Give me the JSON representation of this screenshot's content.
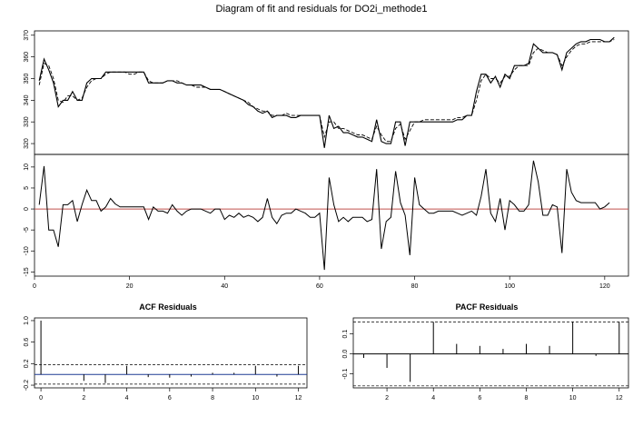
{
  "title": "Diagram of fit and residuals for DO2i_methode1",
  "colors": {
    "fitted": "#000000",
    "actual": "#000000",
    "zero_line": "#c0504d",
    "acf_line": "#1f3a93",
    "confidence": "#000000",
    "axis": "#000000"
  },
  "chart_data": [
    {
      "type": "line",
      "name_key": "fit",
      "title": "",
      "xlabel": "",
      "ylabel": "",
      "xlim": [
        0,
        125
      ],
      "ylim": [
        315,
        372
      ],
      "yticks": [
        320,
        330,
        340,
        350,
        360,
        370
      ],
      "series": [
        {
          "style": "solid",
          "values": [
            349,
            359,
            354,
            348,
            337,
            340,
            340,
            344,
            340,
            340,
            348,
            350,
            350,
            350,
            353,
            353,
            353,
            353,
            353,
            353,
            353,
            353,
            353,
            348,
            348,
            348,
            348,
            349,
            349,
            348,
            348,
            347,
            347,
            347,
            347,
            346,
            345,
            345,
            345,
            344,
            343,
            342,
            341,
            340,
            338,
            337,
            335,
            334,
            335,
            332,
            333,
            333,
            333,
            332,
            332,
            333,
            333,
            333,
            333,
            333,
            318,
            333,
            327,
            328,
            325,
            325,
            324,
            323,
            323,
            322,
            321,
            331,
            321,
            320,
            320,
            330,
            330,
            319,
            330,
            330,
            330,
            330,
            330,
            330,
            330,
            330,
            330,
            330,
            331,
            331,
            333,
            333,
            344,
            352,
            352,
            348,
            351,
            346,
            352,
            350,
            356,
            356,
            356,
            357,
            366,
            364,
            362,
            362,
            362,
            361,
            354,
            362,
            364,
            366,
            367,
            367,
            368,
            368,
            368,
            367,
            367,
            369
          ]
        },
        {
          "style": "dashed",
          "values": [
            347,
            357,
            356,
            350,
            340,
            339,
            342,
            342,
            340,
            341,
            346,
            349,
            350,
            350,
            352,
            353,
            353,
            353,
            353,
            352,
            352,
            353,
            353,
            349,
            348,
            348,
            348,
            349,
            349,
            349,
            348,
            347,
            347,
            346,
            346,
            346,
            345,
            345,
            345,
            344,
            343,
            342,
            341,
            340,
            339,
            337,
            336,
            335,
            335,
            333,
            333,
            333,
            334,
            333,
            333,
            333,
            333,
            333,
            333,
            333,
            323,
            330,
            330,
            327,
            327,
            326,
            325,
            324,
            324,
            323,
            322,
            328,
            324,
            321,
            321,
            327,
            329,
            322,
            326,
            330,
            330,
            331,
            331,
            331,
            331,
            331,
            331,
            331,
            332,
            332,
            333,
            333,
            340,
            349,
            352,
            350,
            350,
            348,
            351,
            351,
            354,
            356,
            356,
            356,
            362,
            364,
            363,
            362,
            362,
            361,
            356,
            360,
            363,
            365,
            366,
            366,
            367,
            367,
            367,
            367,
            367,
            368
          ]
        }
      ]
    },
    {
      "type": "line",
      "name_key": "residuals",
      "title": "",
      "xlabel": "",
      "ylabel": "",
      "xlim": [
        0,
        125
      ],
      "ylim": [
        -16,
        13
      ],
      "xticks": [
        0,
        20,
        40,
        60,
        80,
        100,
        120
      ],
      "yticks": [
        -15,
        -10,
        -5,
        0,
        5,
        10
      ],
      "reference_line": 0,
      "series": [
        {
          "style": "solid",
          "values": [
            1,
            10.2,
            -5,
            -5,
            -9,
            1,
            1,
            2,
            -3,
            1,
            4.5,
            2,
            2,
            -0.5,
            0.5,
            2.5,
            1.2,
            0.5,
            0.5,
            0.5,
            0.5,
            0.5,
            0.5,
            -2.5,
            0.5,
            -0.5,
            -0.5,
            -1,
            1,
            -0.5,
            -1.5,
            -0.5,
            0,
            0,
            0,
            -0.5,
            -1,
            0,
            0,
            -2.5,
            -1.5,
            -2,
            -1,
            -2,
            -1.5,
            -2,
            -3,
            -2,
            2.5,
            -2,
            -3.5,
            -1.5,
            -1,
            -1,
            0,
            -0.5,
            -1,
            -2,
            -2,
            -1,
            -14.5,
            7.5,
            1,
            -3,
            -2,
            -3,
            -2,
            -2,
            -2,
            -3,
            -2.5,
            9.5,
            -9.5,
            -3,
            -2,
            9,
            1.5,
            -1.5,
            -11,
            7.5,
            1,
            0,
            -1,
            -1,
            -0.5,
            -0.5,
            -0.5,
            -0.5,
            -1,
            -1.5,
            -1,
            -0.5,
            -1.5,
            3,
            9.5,
            -1,
            -3,
            2.5,
            -5,
            2,
            1,
            -0.5,
            -0.5,
            1,
            11.5,
            6.5,
            -1.5,
            -1.5,
            1,
            0.5,
            -10.5,
            9.5,
            4,
            2,
            1.5,
            1.5,
            1.5,
            1.5,
            0,
            0.5,
            1.5
          ]
        }
      ]
    },
    {
      "type": "bar",
      "name_key": "acf",
      "title": "ACF Residuals",
      "xlabel": "",
      "ylabel": "",
      "xlim": [
        -0.3,
        12.4
      ],
      "ylim": [
        -0.25,
        1.05
      ],
      "xticks": [
        0,
        2,
        4,
        6,
        8,
        10,
        12
      ],
      "yticks": [
        -0.2,
        0.2,
        0.6,
        1.0
      ],
      "ytick_labels": [
        "-0.2",
        "0.2",
        "0.6",
        "1.0"
      ],
      "confidence_band": [
        -0.18,
        0.18
      ],
      "lags": [
        0,
        1,
        2,
        3,
        4,
        5,
        6,
        7,
        8,
        9,
        10,
        11,
        12
      ],
      "values": [
        1.0,
        0.0,
        -0.12,
        -0.16,
        0.16,
        -0.05,
        -0.06,
        -0.04,
        0.03,
        0.03,
        0.16,
        -0.04,
        0.16
      ]
    },
    {
      "type": "bar",
      "name_key": "pacf",
      "title": "PACF Residuals",
      "xlabel": "",
      "ylabel": "",
      "xlim": [
        0.55,
        12.4
      ],
      "ylim": [
        -0.17,
        0.18
      ],
      "xticks": [
        2,
        4,
        6,
        8,
        10,
        12
      ],
      "yticks": [
        -0.1,
        0.0,
        0.1
      ],
      "ytick_labels": [
        "-0.1",
        "0.0",
        "0.1"
      ],
      "confidence_band": [
        -0.16,
        0.16
      ],
      "lags": [
        1,
        2,
        3,
        4,
        5,
        6,
        7,
        8,
        9,
        10,
        11,
        12
      ],
      "values": [
        -0.02,
        -0.07,
        -0.14,
        0.16,
        0.05,
        0.04,
        0.025,
        0.05,
        0.04,
        0.16,
        -0.01,
        0.16
      ]
    }
  ]
}
